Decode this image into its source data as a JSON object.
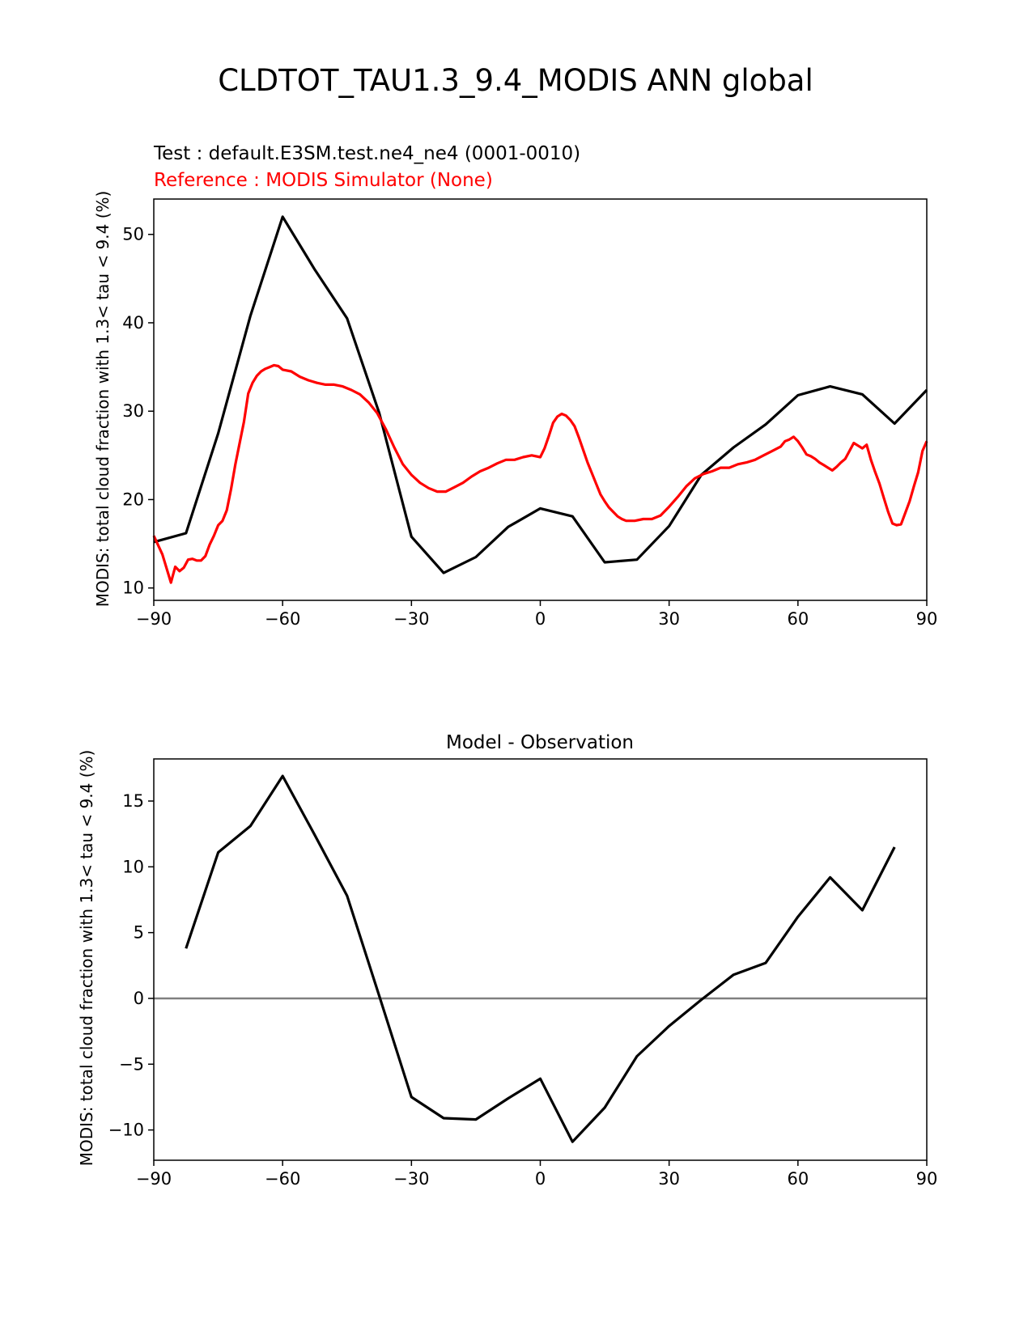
{
  "figure": {
    "title": "CLDTOT_TAU1.3_9.4_MODIS ANN global"
  },
  "chart_data": [
    {
      "type": "line",
      "test_label": "Test : default.E3SM.test.ne4_ne4 (0001-0010)",
      "reference_label": "Reference : MODIS Simulator (None)",
      "ylabel": "MODIS: total cloud fraction with 1.3< tau < 9.4 (%)",
      "xlim": [
        -90,
        90
      ],
      "ylim": [
        8.6,
        54
      ],
      "xticks": [
        -90,
        -60,
        -30,
        0,
        30,
        60,
        90
      ],
      "xtick_labels": [
        "−90",
        "−60",
        "−30",
        "0",
        "30",
        "60",
        "90"
      ],
      "yticks": [
        10,
        20,
        30,
        40,
        50
      ],
      "yticks_labels": [
        "10",
        "20",
        "30",
        "40",
        "50"
      ],
      "colors": {
        "test": "#000000",
        "reference": "#ff0000"
      },
      "series": [
        {
          "role": "test",
          "x": [
            -90,
            -82.5,
            -75,
            -67.5,
            -60,
            -52.5,
            -45,
            -37.5,
            -30,
            -22.5,
            -15,
            -7.5,
            0,
            7.5,
            15,
            22.5,
            30,
            37.5,
            45,
            52.5,
            60,
            67.5,
            75,
            82.5,
            90
          ],
          "y": [
            15.2,
            16.2,
            27.5,
            40.8,
            52.0,
            46.0,
            40.5,
            29.8,
            15.8,
            11.7,
            13.5,
            16.9,
            19.0,
            18.1,
            12.9,
            13.2,
            17.0,
            22.8,
            25.9,
            28.5,
            31.8,
            32.8,
            31.9,
            28.6,
            32.4
          ]
        },
        {
          "role": "reference",
          "x": [
            -90,
            -88,
            -86,
            -85,
            -84,
            -83,
            -82,
            -81,
            -80,
            -79,
            -78,
            -77,
            -76,
            -75,
            -74,
            -73,
            -72,
            -71,
            -70,
            -69,
            -68,
            -67,
            -66,
            -65,
            -64,
            -63,
            -62,
            -61,
            -60,
            -58,
            -56,
            -54,
            -52,
            -50,
            -48,
            -46,
            -44,
            -42,
            -40,
            -38,
            -36,
            -34,
            -32,
            -30,
            -28,
            -26,
            -24,
            -22,
            -20,
            -18,
            -16,
            -14,
            -12,
            -10,
            -8,
            -6,
            -4,
            -2,
            0,
            1,
            2,
            3,
            4,
            5,
            6,
            7,
            8,
            9,
            10,
            11,
            12,
            13,
            14,
            15,
            16,
            17,
            18,
            19,
            20,
            22,
            24,
            26,
            28,
            30,
            32,
            34,
            36,
            38,
            40,
            42,
            44,
            46,
            48,
            50,
            52,
            54,
            56,
            57,
            58,
            59,
            60,
            61,
            62,
            63,
            64,
            65,
            66,
            67,
            68,
            69,
            70,
            71,
            72,
            73,
            74,
            75,
            76,
            77,
            78,
            79,
            80,
            81,
            82,
            83,
            84,
            85,
            86,
            87,
            88,
            89,
            90
          ],
          "y": [
            15.9,
            13.8,
            10.6,
            12.4,
            11.9,
            12.3,
            13.2,
            13.3,
            13.1,
            13.1,
            13.6,
            14.9,
            15.9,
            17.1,
            17.6,
            18.8,
            21.2,
            24.0,
            26.4,
            28.8,
            32.0,
            33.2,
            34.0,
            34.5,
            34.8,
            35.0,
            35.2,
            35.1,
            34.7,
            34.5,
            33.9,
            33.5,
            33.2,
            33.0,
            33.0,
            32.8,
            32.4,
            31.9,
            31.0,
            29.8,
            28.0,
            25.9,
            24.0,
            22.8,
            21.9,
            21.3,
            20.9,
            20.9,
            21.4,
            21.9,
            22.6,
            23.2,
            23.6,
            24.1,
            24.5,
            24.5,
            24.8,
            25.0,
            24.8,
            25.8,
            27.2,
            28.7,
            29.4,
            29.7,
            29.5,
            29.0,
            28.3,
            27.0,
            25.6,
            24.2,
            23.0,
            21.8,
            20.6,
            19.8,
            19.1,
            18.6,
            18.1,
            17.8,
            17.6,
            17.6,
            17.8,
            17.8,
            18.2,
            19.2,
            20.3,
            21.5,
            22.4,
            22.9,
            23.2,
            23.6,
            23.6,
            24.0,
            24.2,
            24.5,
            25.0,
            25.5,
            26.0,
            26.6,
            26.8,
            27.1,
            26.6,
            25.9,
            25.1,
            24.9,
            24.6,
            24.2,
            23.9,
            23.6,
            23.3,
            23.7,
            24.2,
            24.6,
            25.5,
            26.4,
            26.1,
            25.8,
            26.2,
            24.5,
            23.1,
            21.8,
            20.2,
            18.6,
            17.3,
            17.1,
            17.2,
            18.5,
            19.8,
            21.5,
            23.1,
            25.5,
            26.6
          ]
        }
      ]
    },
    {
      "type": "line",
      "title": "Model - Observation",
      "ylabel": "MODIS: total cloud fraction with 1.3< tau < 9.4 (%)",
      "xlim": [
        -90,
        90
      ],
      "ylim": [
        -12.3,
        18.2
      ],
      "xticks": [
        -90,
        -60,
        -30,
        0,
        30,
        60,
        90
      ],
      "xtick_labels": [
        "−90",
        "−60",
        "−30",
        "0",
        "30",
        "60",
        "90"
      ],
      "yticks": [
        -10,
        -5,
        0,
        5,
        10,
        15
      ],
      "ytick_labels": [
        "−10",
        "−5",
        "0",
        "5",
        "10",
        "15"
      ],
      "zero_line_color": "#808080",
      "series": [
        {
          "role": "diff",
          "x": [
            -82.5,
            -75,
            -67.5,
            -60,
            -52.5,
            -45,
            -37.5,
            -30,
            -22.5,
            -15,
            -7.5,
            0,
            7.5,
            15,
            22.5,
            30,
            37.5,
            45,
            52.5,
            60,
            67.5,
            75,
            82.5
          ],
          "y": [
            3.8,
            11.1,
            13.1,
            16.9,
            12.4,
            7.8,
            0.2,
            -7.5,
            -9.1,
            -9.2,
            -7.6,
            -6.1,
            -10.9,
            -8.3,
            -4.4,
            -2.1,
            -0.1,
            1.8,
            2.7,
            6.2,
            9.2,
            6.7,
            11.5
          ]
        }
      ]
    }
  ]
}
